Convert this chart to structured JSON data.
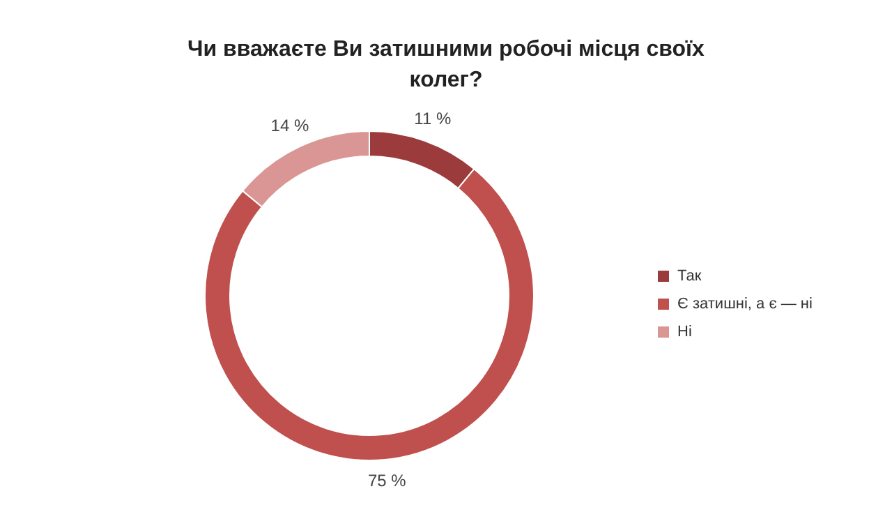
{
  "chart_data": {
    "type": "donut",
    "title": "Чи вважаєте Ви затишними робочі місця своїх колег?",
    "categories": [
      "Так",
      "Є затишні, а є — ні",
      "Ні"
    ],
    "values": [
      11,
      75,
      14
    ],
    "colors": [
      "#9b3b3b",
      "#c0504d",
      "#d99694"
    ],
    "value_labels": [
      "11 %",
      "75 %",
      "14 %"
    ],
    "legend": "right"
  }
}
